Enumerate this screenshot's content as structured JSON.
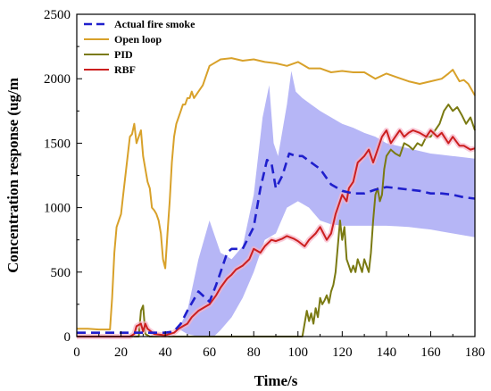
{
  "chart_data": {
    "type": "line",
    "title": "",
    "xlabel": "Time/s",
    "ylabel": "Concentration response (ug/m",
    "xlim": [
      0,
      180
    ],
    "ylim": [
      0,
      2500
    ],
    "xticks": [
      0,
      20,
      40,
      60,
      80,
      100,
      120,
      140,
      160,
      180
    ],
    "yticks": [
      0,
      500,
      1000,
      1500,
      2000,
      2500
    ],
    "xtick_labels": [
      "0",
      "20",
      "40",
      "60",
      "80",
      "100",
      "120",
      "140",
      "160",
      "180"
    ],
    "ytick_labels": [
      "0",
      "500",
      "1000",
      "1500",
      "2000",
      "2500"
    ],
    "grid": false,
    "legend_position": "top-left",
    "band": {
      "color": "#a9a9f5",
      "upper": [
        [
          46,
          60
        ],
        [
          50,
          200
        ],
        [
          55,
          600
        ],
        [
          60,
          900
        ],
        [
          65,
          650
        ],
        [
          70,
          600
        ],
        [
          75,
          700
        ],
        [
          80,
          1100
        ],
        [
          84,
          1700
        ],
        [
          87,
          1950
        ],
        [
          89,
          1500
        ],
        [
          91,
          1400
        ],
        [
          93,
          1600
        ],
        [
          95,
          1800
        ],
        [
          97,
          2060
        ],
        [
          99,
          1900
        ],
        [
          102,
          1850
        ],
        [
          106,
          1800
        ],
        [
          110,
          1750
        ],
        [
          115,
          1700
        ],
        [
          120,
          1650
        ],
        [
          125,
          1620
        ],
        [
          130,
          1580
        ],
        [
          135,
          1550
        ],
        [
          140,
          1500
        ],
        [
          145,
          1480
        ],
        [
          150,
          1460
        ],
        [
          155,
          1440
        ],
        [
          160,
          1420
        ],
        [
          165,
          1410
        ],
        [
          170,
          1400
        ],
        [
          175,
          1390
        ],
        [
          180,
          1380
        ]
      ],
      "lower": [
        [
          46,
          60
        ],
        [
          50,
          20
        ],
        [
          55,
          0
        ],
        [
          60,
          0
        ],
        [
          62,
          0
        ],
        [
          65,
          50
        ],
        [
          70,
          150
        ],
        [
          75,
          300
        ],
        [
          80,
          500
        ],
        [
          85,
          750
        ],
        [
          90,
          800
        ],
        [
          95,
          1000
        ],
        [
          100,
          1050
        ],
        [
          105,
          1000
        ],
        [
          110,
          900
        ],
        [
          115,
          870
        ],
        [
          120,
          860
        ],
        [
          125,
          860
        ],
        [
          130,
          860
        ],
        [
          135,
          860
        ],
        [
          140,
          860
        ],
        [
          145,
          855
        ],
        [
          150,
          850
        ],
        [
          155,
          840
        ],
        [
          160,
          830
        ],
        [
          165,
          815
        ],
        [
          170,
          800
        ],
        [
          175,
          785
        ],
        [
          180,
          770
        ]
      ]
    },
    "series": [
      {
        "name": "Actual fire smoke",
        "color": "#1f1fcc",
        "dashed": true,
        "x": [
          0,
          10,
          20,
          30,
          40,
          44,
          47,
          50,
          55,
          60,
          63,
          65,
          68,
          70,
          75,
          80,
          83,
          86,
          88,
          90,
          93,
          96,
          99,
          102,
          106,
          110,
          115,
          120,
          125,
          130,
          135,
          140,
          145,
          150,
          155,
          160,
          165,
          170,
          175,
          180
        ],
        "y": [
          30,
          30,
          30,
          30,
          30,
          40,
          100,
          200,
          350,
          270,
          400,
          500,
          650,
          680,
          680,
          850,
          1150,
          1370,
          1350,
          1150,
          1250,
          1420,
          1400,
          1400,
          1350,
          1300,
          1180,
          1130,
          1110,
          1110,
          1140,
          1160,
          1150,
          1140,
          1130,
          1110,
          1110,
          1100,
          1080,
          1070
        ]
      },
      {
        "name": "Open loop",
        "color": "#d8a12a",
        "dashed": false,
        "x": [
          0,
          5,
          10,
          15,
          16,
          17,
          18,
          19,
          20,
          21,
          22,
          23,
          24,
          25,
          26,
          27,
          28,
          29,
          30,
          31,
          32,
          33,
          34,
          35,
          36,
          37,
          38,
          39,
          40,
          41,
          42,
          43,
          44,
          45,
          46,
          47,
          48,
          49,
          50,
          51,
          52,
          53,
          55,
          57,
          60,
          65,
          70,
          75,
          80,
          85,
          90,
          95,
          100,
          105,
          110,
          115,
          120,
          125,
          130,
          135,
          140,
          145,
          150,
          155,
          160,
          165,
          168,
          170,
          173,
          175,
          177,
          180
        ],
        "y": [
          60,
          60,
          55,
          55,
          300,
          650,
          850,
          900,
          950,
          1100,
          1250,
          1400,
          1550,
          1570,
          1650,
          1500,
          1550,
          1600,
          1400,
          1300,
          1200,
          1150,
          1000,
          980,
          950,
          900,
          800,
          600,
          530,
          800,
          1050,
          1350,
          1550,
          1650,
          1700,
          1750,
          1800,
          1800,
          1850,
          1850,
          1900,
          1850,
          1900,
          1950,
          2100,
          2150,
          2160,
          2140,
          2150,
          2130,
          2120,
          2100,
          2130,
          2080,
          2080,
          2050,
          2060,
          2050,
          2050,
          2000,
          2040,
          2010,
          1980,
          1960,
          1980,
          2000,
          2040,
          2070,
          1980,
          1990,
          1960,
          1870
        ]
      },
      {
        "name": "PID",
        "color": "#7a7a12",
        "dashed": false,
        "x": [
          0,
          10,
          20,
          25,
          28,
          29,
          30,
          31,
          33,
          40,
          50,
          60,
          70,
          80,
          90,
          100,
          102,
          103,
          104,
          105,
          106,
          107,
          108,
          109,
          110,
          111,
          112,
          113,
          114,
          115,
          116,
          117,
          118,
          119,
          120,
          121,
          122,
          123,
          124,
          125,
          126,
          127,
          128,
          129,
          130,
          131,
          132,
          133,
          134,
          135,
          136,
          137,
          138,
          139,
          140,
          142,
          144,
          146,
          148,
          150,
          152,
          154,
          156,
          158,
          160,
          162,
          164,
          166,
          168,
          170,
          172,
          174,
          176,
          178,
          180
        ],
        "y": [
          0,
          0,
          0,
          0,
          0,
          200,
          240,
          20,
          0,
          0,
          0,
          0,
          0,
          0,
          0,
          0,
          0,
          100,
          200,
          120,
          180,
          100,
          220,
          150,
          300,
          250,
          280,
          320,
          260,
          350,
          400,
          500,
          700,
          900,
          750,
          850,
          600,
          550,
          500,
          550,
          500,
          600,
          550,
          500,
          600,
          550,
          500,
          650,
          900,
          1100,
          1150,
          1050,
          1100,
          1300,
          1400,
          1450,
          1420,
          1400,
          1500,
          1480,
          1450,
          1500,
          1480,
          1550,
          1550,
          1600,
          1650,
          1750,
          1800,
          1750,
          1780,
          1720,
          1650,
          1700,
          1600
        ]
      },
      {
        "name": "RBF",
        "color": "#cc1f1f",
        "dashed": false,
        "x": [
          0,
          10,
          20,
          24,
          26,
          27,
          29,
          30,
          31,
          32,
          35,
          40,
          42,
          44,
          46,
          48,
          50,
          52,
          55,
          58,
          60,
          63,
          65,
          68,
          70,
          72,
          75,
          78,
          80,
          83,
          85,
          88,
          90,
          93,
          95,
          98,
          100,
          103,
          105,
          108,
          110,
          113,
          115,
          117,
          118,
          120,
          122,
          123,
          125,
          127,
          130,
          132,
          134,
          136,
          138,
          140,
          142,
          144,
          146,
          148,
          150,
          152,
          155,
          158,
          160,
          163,
          165,
          168,
          170,
          173,
          175,
          178,
          180
        ],
        "y": [
          0,
          0,
          0,
          0,
          20,
          80,
          100,
          40,
          100,
          60,
          20,
          10,
          20,
          30,
          60,
          80,
          100,
          150,
          200,
          230,
          250,
          320,
          380,
          450,
          480,
          520,
          550,
          600,
          680,
          650,
          700,
          750,
          740,
          760,
          780,
          760,
          740,
          700,
          750,
          800,
          850,
          750,
          800,
          950,
          1000,
          1100,
          1050,
          1150,
          1200,
          1350,
          1400,
          1450,
          1350,
          1450,
          1550,
          1600,
          1500,
          1550,
          1600,
          1550,
          1580,
          1600,
          1580,
          1550,
          1600,
          1550,
          1580,
          1500,
          1550,
          1480,
          1480,
          1450,
          1460
        ]
      }
    ]
  }
}
